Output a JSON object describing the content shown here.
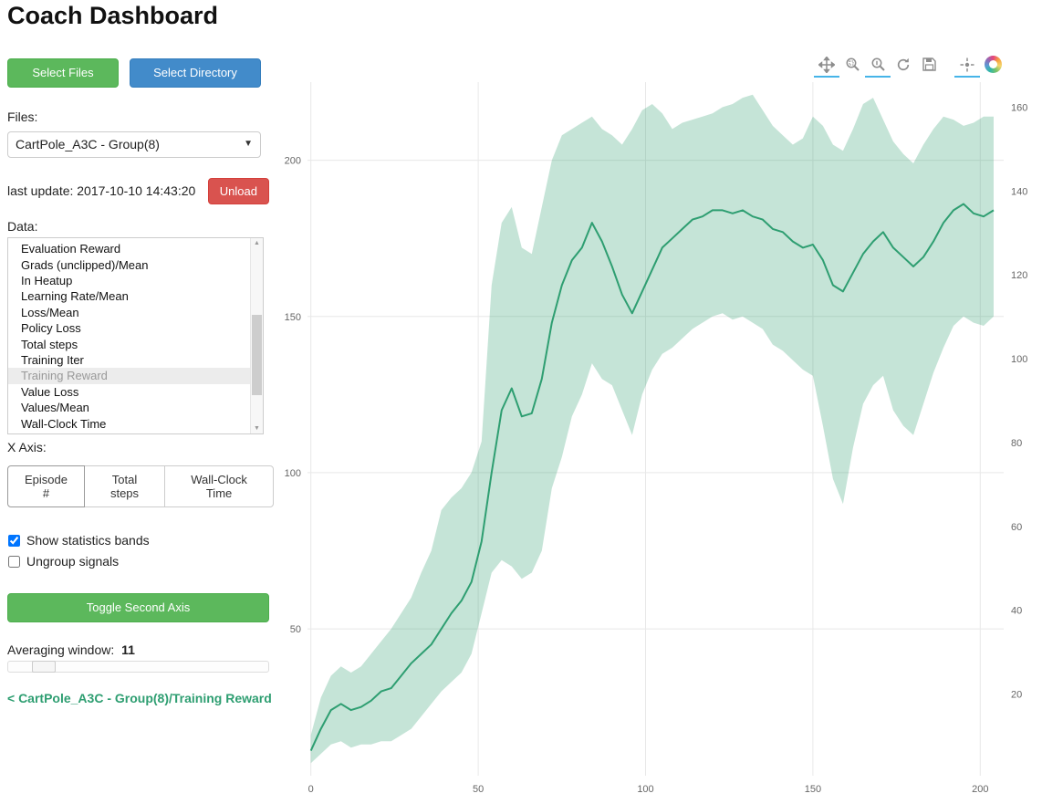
{
  "header": {
    "title": "Coach Dashboard"
  },
  "sidebar": {
    "select_files": "Select Files",
    "select_directory": "Select Directory",
    "files_label": "Files:",
    "files_value": "CartPole_A3C - Group(8)",
    "last_update": "last update: 2017-10-10 14:43:20",
    "unload": "Unload",
    "data_label": "Data:",
    "data_items": [
      "Evaluation Reward",
      "Grads (unclipped)/Mean",
      "In Heatup",
      "Learning Rate/Mean",
      "Loss/Mean",
      "Policy Loss",
      "Total steps",
      "Training Iter",
      "Training Reward",
      "Value Loss",
      "Values/Mean",
      "Wall-Clock Time"
    ],
    "selected_item": "Training Reward",
    "x_axis_label": "X Axis:",
    "x_axis_options": [
      "Episode #",
      "Total steps",
      "Wall-Clock Time"
    ],
    "x_axis_selected": "Episode #",
    "checkboxes": [
      {
        "label": "Show statistics bands",
        "checked": true
      },
      {
        "label": "Ungroup signals",
        "checked": false
      }
    ],
    "toggle_second_axis": "Toggle Second Axis",
    "averaging_label": "Averaging window:",
    "averaging_value": "11",
    "breadcrumb": "< CartPole_A3C - Group(8)/Training Reward"
  },
  "toolbar": {
    "tools": [
      {
        "name": "pan-icon",
        "active": true
      },
      {
        "name": "box-zoom-icon",
        "active": false
      },
      {
        "name": "wheel-zoom-icon",
        "active": true
      },
      {
        "name": "reset-icon",
        "active": false
      },
      {
        "name": "save-icon",
        "active": false
      },
      {
        "name": "hover-icon",
        "active": true
      },
      {
        "name": "bokeh-logo",
        "active": false
      }
    ]
  },
  "chart_data": {
    "type": "line",
    "title": "",
    "series_name": "CartPole_A3C - Group(8)/Training Reward",
    "xlabel": "Episode #",
    "ylabel": "Training Reward",
    "legend_position": "none",
    "grid": true,
    "line_color": "#2e9e71",
    "band_color": "rgba(46,158,113,0.28)",
    "x_range": [
      -1,
      207
    ],
    "y_left_range": [
      3,
      225
    ],
    "y_right_range": [
      0.5,
      166
    ],
    "x_ticks": [
      0,
      50,
      100,
      150,
      200
    ],
    "y_left_ticks": [
      50,
      100,
      150,
      200
    ],
    "y_right_ticks": [
      20,
      40,
      60,
      80,
      100,
      120,
      140,
      160
    ],
    "x": [
      0,
      3,
      6,
      9,
      12,
      15,
      18,
      21,
      24,
      27,
      30,
      33,
      36,
      39,
      42,
      45,
      48,
      51,
      54,
      57,
      60,
      63,
      66,
      69,
      72,
      75,
      78,
      81,
      84,
      87,
      90,
      93,
      96,
      99,
      102,
      105,
      108,
      111,
      114,
      117,
      120,
      123,
      126,
      129,
      132,
      135,
      138,
      141,
      144,
      147,
      150,
      153,
      156,
      159,
      162,
      165,
      168,
      171,
      174,
      177,
      180,
      183,
      186,
      189,
      192,
      195,
      198,
      201,
      204
    ],
    "mean": [
      11,
      18,
      24,
      26,
      24,
      25,
      27,
      30,
      31,
      35,
      39,
      42,
      45,
      50,
      55,
      59,
      65,
      78,
      100,
      120,
      127,
      118,
      119,
      130,
      148,
      160,
      168,
      172,
      180,
      174,
      166,
      157,
      151,
      158,
      165,
      172,
      175,
      178,
      181,
      182,
      184,
      184,
      183,
      184,
      182,
      181,
      178,
      177,
      174,
      172,
      173,
      168,
      160,
      158,
      164,
      170,
      174,
      177,
      172,
      169,
      166,
      169,
      174,
      180,
      184,
      186,
      183,
      182,
      184
    ],
    "band_lower": [
      7,
      10,
      13,
      14,
      12,
      13,
      13,
      14,
      14,
      16,
      18,
      22,
      26,
      30,
      33,
      36,
      42,
      55,
      68,
      72,
      70,
      66,
      68,
      75,
      95,
      105,
      118,
      125,
      135,
      130,
      128,
      120,
      112,
      125,
      133,
      138,
      140,
      143,
      146,
      148,
      150,
      151,
      149,
      150,
      148,
      146,
      141,
      139,
      136,
      133,
      131,
      115,
      98,
      90,
      108,
      122,
      128,
      131,
      120,
      115,
      112,
      122,
      132,
      140,
      147,
      150,
      148,
      147,
      150
    ],
    "band_upper": [
      16,
      28,
      35,
      38,
      36,
      38,
      42,
      46,
      50,
      55,
      60,
      68,
      75,
      88,
      92,
      95,
      100,
      110,
      160,
      180,
      185,
      172,
      170,
      185,
      200,
      208,
      210,
      212,
      214,
      210,
      208,
      205,
      210,
      216,
      218,
      215,
      210,
      212,
      213,
      214,
      215,
      217,
      218,
      220,
      221,
      216,
      211,
      208,
      205,
      207,
      214,
      211,
      205,
      203,
      210,
      218,
      220,
      213,
      206,
      202,
      199,
      205,
      210,
      214,
      213,
      211,
      212,
      214,
      214
    ]
  }
}
